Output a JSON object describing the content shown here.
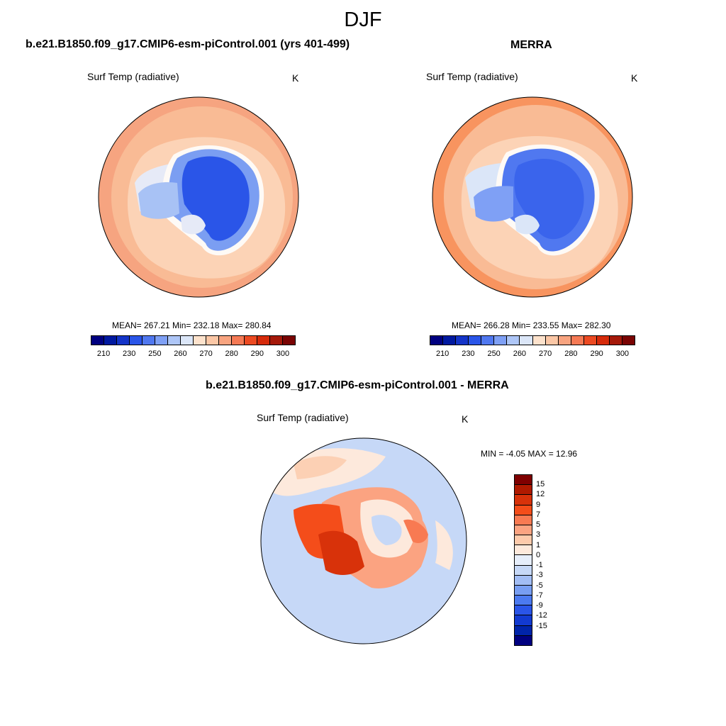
{
  "season": "DJF",
  "panels": [
    {
      "title": "b.e21.B1850.f09_g17.CMIP6-esm-piControl.001 (yrs 401-499)",
      "variable": "Surf Temp (radiative)",
      "units": "K",
      "stats": "MEAN= 267.21  Min= 232.18  Max= 280.84"
    },
    {
      "title": "MERRA",
      "variable": "Surf Temp (radiative)",
      "units": "K",
      "stats": "MEAN= 266.28  Min= 233.55  Max= 282.30"
    },
    {
      "title": "b.e21.B1850.f09_g17.CMIP6-esm-piControl.001 - MERRA",
      "variable": "Surf Temp (radiative)",
      "units": "K",
      "stats": "MIN =  -4.05 MAX =  12.96"
    }
  ],
  "abs_colorbar": {
    "colors": [
      "#000080",
      "#0019a0",
      "#1434c8",
      "#2a55e8",
      "#5078f0",
      "#7fa0f5",
      "#aec6f7",
      "#dbe6f8",
      "#fde2cc",
      "#fbc7a6",
      "#f8a480",
      "#f57a55",
      "#ec4a22",
      "#d62b0b",
      "#a5190a",
      "#7a0403"
    ],
    "labels": [
      "210",
      "230",
      "250",
      "260",
      "270",
      "280",
      "290",
      "300"
    ],
    "label_edges": [
      1,
      3,
      5,
      7,
      9,
      11,
      13,
      15
    ]
  },
  "diff_colorbar": {
    "colors": [
      "#7f0000",
      "#b01a00",
      "#d8320a",
      "#f44d1a",
      "#f87a52",
      "#fba381",
      "#fdcaab",
      "#fde9dc",
      "#e6eefb",
      "#c6d8f7",
      "#a2bdf4",
      "#789ef2",
      "#4c7af0",
      "#2a55e8",
      "#123ad1",
      "#0024aa",
      "#000080"
    ],
    "labels": [
      "15",
      "12",
      "9",
      "7",
      "5",
      "3",
      "1",
      "0",
      "-1",
      "-3",
      "-5",
      "-7",
      "-9",
      "-12",
      "-15"
    ],
    "label_edges": [
      1,
      2,
      3,
      4,
      5,
      6,
      7,
      8,
      9,
      10,
      11,
      12,
      13,
      14,
      15
    ]
  }
}
